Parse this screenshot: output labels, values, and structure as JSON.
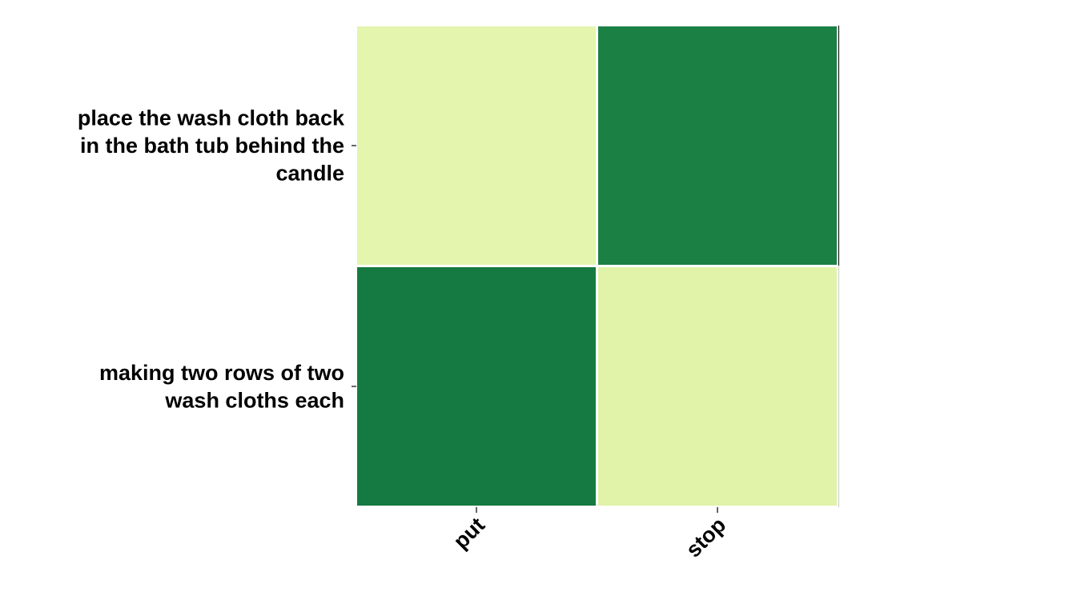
{
  "chart_data": {
    "type": "heatmap",
    "title": "",
    "xlabel": "",
    "ylabel": "",
    "x_categories": [
      "put",
      "stop"
    ],
    "y_categories": [
      "place the wash cloth back in the bath tub behind the candle",
      "making two rows of two wash cloths each"
    ],
    "y_label_lines": [
      [
        "place the wash cloth back",
        "in the bath tub behind the",
        "candle"
      ],
      [
        "making two rows of two",
        "wash cloths each"
      ]
    ],
    "values": [
      [
        0.0,
        1.0
      ],
      [
        1.0,
        0.0
      ]
    ],
    "colors": [
      [
        "#e4f5ae",
        "#1a8044"
      ],
      [
        "#157a41",
        "#e0f3a8"
      ]
    ],
    "colormap": "YlGn",
    "grid": false,
    "legend": "none"
  }
}
